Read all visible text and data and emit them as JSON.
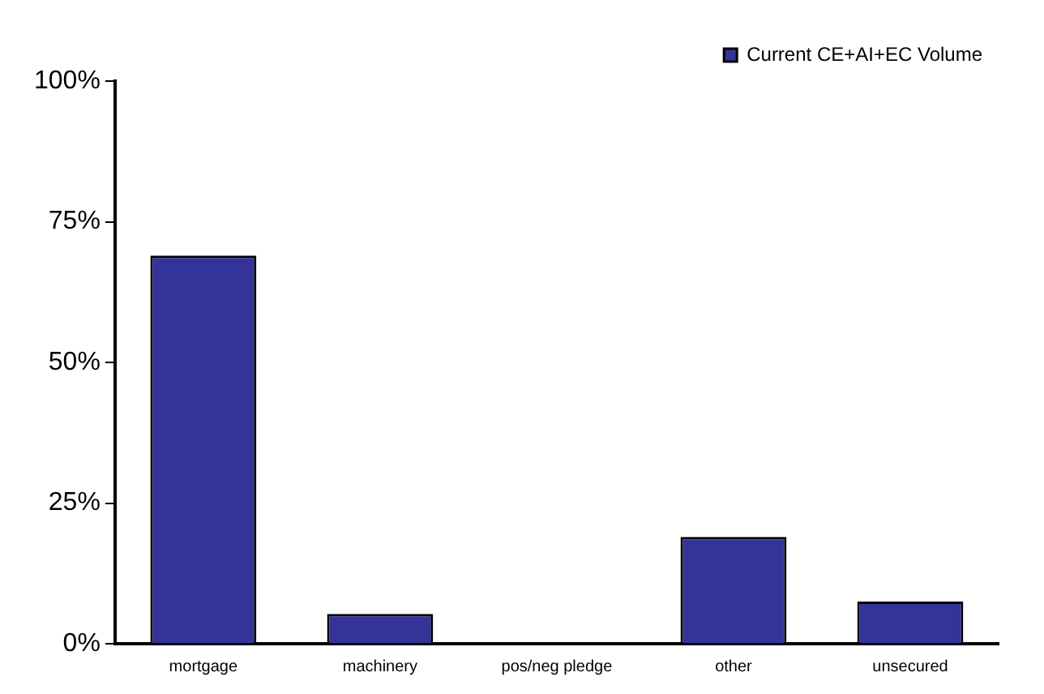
{
  "chart_data": {
    "type": "bar",
    "categories": [
      "mortgage",
      "machinery",
      "pos/neg pledge",
      "other",
      "unsecured"
    ],
    "series": [
      {
        "name": "Current CE+AI+EC Volume",
        "color": "#333399",
        "values": [
          69,
          5.3,
          0,
          19,
          7.5
        ]
      }
    ],
    "ylim": [
      0,
      100
    ],
    "yticks": [
      {
        "value": 0,
        "label": "0%"
      },
      {
        "value": 25,
        "label": "25%"
      },
      {
        "value": 50,
        "label": "50%"
      },
      {
        "value": 75,
        "label": "75%"
      },
      {
        "value": 100,
        "label": "100%"
      }
    ],
    "grid": false,
    "legend": "top right"
  }
}
